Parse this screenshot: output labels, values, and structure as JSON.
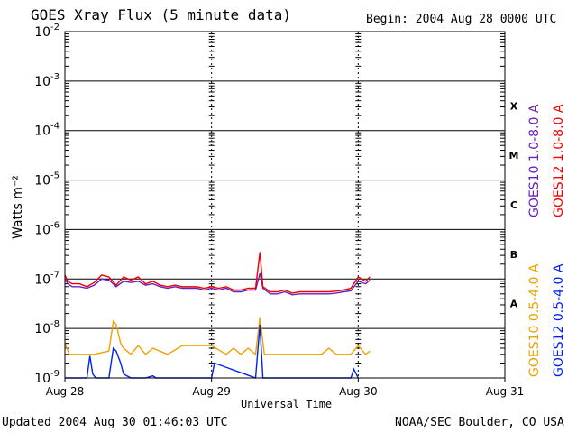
{
  "header": {
    "title": "GOES Xray Flux (5 minute data)",
    "begin": "Begin:  2004 Aug 28 0000 UTC"
  },
  "footer": {
    "updated": "Updated 2004 Aug 30 01:46:03 UTC",
    "source": "NOAA/SEC Boulder, CO USA"
  },
  "chart_data": {
    "type": "line",
    "title": "GOES Xray Flux (5 minute data)",
    "xlabel": "Universal Time",
    "ylabel": "Watts m⁻²",
    "y_scale": "log",
    "ylim": [
      1e-09,
      0.01
    ],
    "y_ticks": [
      {
        "base": "10",
        "exp": "-2"
      },
      {
        "base": "10",
        "exp": "-3"
      },
      {
        "base": "10",
        "exp": "-4"
      },
      {
        "base": "10",
        "exp": "-5"
      },
      {
        "base": "10",
        "exp": "-6"
      },
      {
        "base": "10",
        "exp": "-7"
      },
      {
        "base": "10",
        "exp": "-8"
      },
      {
        "base": "10",
        "exp": "-9"
      }
    ],
    "x_ticks": [
      "Aug 28",
      "Aug 29",
      "Aug 30",
      "Aug 31"
    ],
    "xlim_days": [
      0,
      3
    ],
    "flare_classes": [
      "X",
      "M",
      "C",
      "B",
      "A"
    ],
    "grid": "horizontal lines at each decade",
    "series": [
      {
        "name": "GOES10 1.0-8.0 A",
        "color": "#6a1fbf",
        "x_days": [
          0,
          0.02,
          0.05,
          0.1,
          0.15,
          0.2,
          0.25,
          0.3,
          0.35,
          0.4,
          0.45,
          0.5,
          0.55,
          0.6,
          0.65,
          0.7,
          0.75,
          0.8,
          0.85,
          0.9,
          0.95,
          1.0,
          1.05,
          1.1,
          1.15,
          1.2,
          1.25,
          1.3,
          1.33,
          1.35,
          1.4,
          1.45,
          1.5,
          1.55,
          1.6,
          1.65,
          1.7,
          1.75,
          1.8,
          1.85,
          1.9,
          1.95,
          2.0,
          2.05,
          2.08
        ],
        "y": [
          1e-07,
          8e-08,
          7e-08,
          7e-08,
          6.5e-08,
          7.5e-08,
          1e-07,
          9.5e-08,
          7e-08,
          9e-08,
          8.5e-08,
          9e-08,
          7.5e-08,
          8e-08,
          7e-08,
          6.5e-08,
          7e-08,
          6.5e-08,
          6.5e-08,
          6.5e-08,
          6e-08,
          6.5e-08,
          6e-08,
          6.5e-08,
          5.5e-08,
          5.5e-08,
          6e-08,
          6e-08,
          1.3e-07,
          6.5e-08,
          5e-08,
          5e-08,
          5.5e-08,
          4.8e-08,
          5e-08,
          5e-08,
          5e-08,
          5e-08,
          5e-08,
          5.2e-08,
          5.5e-08,
          5.8e-08,
          9e-08,
          8e-08,
          9.5e-08
        ]
      },
      {
        "name": "GOES12 1.0-8.0 A",
        "color": "#ee0000",
        "x_days": [
          0,
          0.02,
          0.05,
          0.1,
          0.15,
          0.2,
          0.25,
          0.3,
          0.35,
          0.4,
          0.45,
          0.5,
          0.55,
          0.6,
          0.65,
          0.7,
          0.75,
          0.8,
          0.85,
          0.9,
          0.95,
          1.0,
          1.05,
          1.1,
          1.15,
          1.2,
          1.25,
          1.3,
          1.33,
          1.35,
          1.4,
          1.45,
          1.5,
          1.55,
          1.6,
          1.65,
          1.7,
          1.75,
          1.8,
          1.85,
          1.9,
          1.95,
          2.0,
          2.05,
          2.08
        ],
        "y": [
          1.2e-07,
          9e-08,
          8e-08,
          8e-08,
          7e-08,
          8.5e-08,
          1.2e-07,
          1.1e-07,
          7.5e-08,
          1.1e-07,
          9.5e-08,
          1.1e-07,
          8e-08,
          9e-08,
          7.5e-08,
          7e-08,
          7.5e-08,
          7e-08,
          7e-08,
          7e-08,
          6.5e-08,
          7e-08,
          6.5e-08,
          7e-08,
          6e-08,
          6e-08,
          6.5e-08,
          6.5e-08,
          3.5e-07,
          7e-08,
          5.5e-08,
          5.5e-08,
          6e-08,
          5.2e-08,
          5.5e-08,
          5.5e-08,
          5.5e-08,
          5.5e-08,
          5.5e-08,
          5.7e-08,
          6e-08,
          6.5e-08,
          1.1e-07,
          9e-08,
          1.1e-07
        ]
      },
      {
        "name": "GOES10 0.5-4.0 A",
        "color": "#f0a000",
        "x_days": [
          0,
          0.03,
          0.1,
          0.2,
          0.3,
          0.33,
          0.35,
          0.38,
          0.4,
          0.45,
          0.5,
          0.55,
          0.6,
          0.7,
          0.8,
          0.9,
          1.0,
          1.1,
          1.15,
          1.2,
          1.25,
          1.3,
          1.33,
          1.36,
          1.45,
          1.6,
          1.7,
          1.75,
          1.8,
          1.85,
          1.9,
          1.95,
          2.0,
          2.05,
          2.08
        ],
        "y": [
          5e-09,
          3e-09,
          3e-09,
          3e-09,
          3.5e-09,
          1.4e-08,
          1.2e-08,
          5e-09,
          4e-09,
          3e-09,
          4.5e-09,
          3e-09,
          4e-09,
          3e-09,
          4.5e-09,
          4.5e-09,
          4.5e-09,
          3e-09,
          4e-09,
          3e-09,
          4e-09,
          3e-09,
          1.7e-08,
          3e-09,
          3e-09,
          3e-09,
          3e-09,
          3e-09,
          4e-09,
          3e-09,
          3e-09,
          3e-09,
          4.5e-09,
          3e-09,
          3.5e-09
        ]
      },
      {
        "name": "GOES12 0.5-4.0 A",
        "color": "#0022ee",
        "x_days": [
          0,
          0.15,
          0.17,
          0.19,
          0.21,
          0.3,
          0.33,
          0.35,
          0.38,
          0.4,
          0.45,
          0.55,
          0.6,
          0.62,
          0.7,
          1.0,
          1.02,
          1.3,
          1.33,
          1.35,
          1.8,
          1.95,
          1.97,
          2.0
        ],
        "y": [
          1e-09,
          1e-09,
          2.8e-09,
          1.2e-09,
          1e-09,
          1e-09,
          4e-09,
          3.5e-09,
          2e-09,
          1.2e-09,
          1e-09,
          1e-09,
          1.1e-09,
          1e-09,
          1e-09,
          1e-09,
          2e-09,
          1e-09,
          1.2e-08,
          1e-09,
          1e-09,
          1e-09,
          1.5e-09,
          1e-09
        ]
      }
    ]
  }
}
